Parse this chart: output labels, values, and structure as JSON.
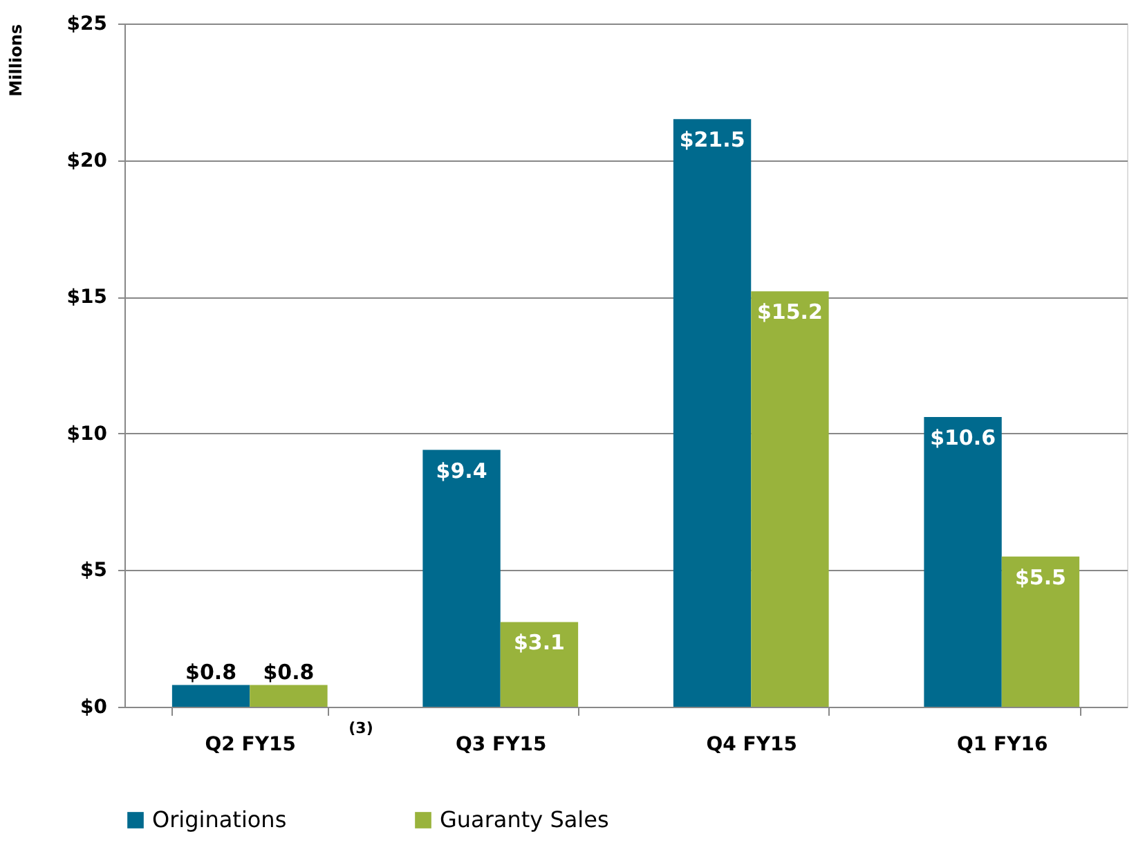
{
  "chart_data": {
    "type": "bar",
    "ylabel": "Millions",
    "categories": [
      "Q2 FY15",
      "Q3 FY15",
      "Q4 FY15",
      "Q1 FY16"
    ],
    "series": [
      {
        "name": "Originations",
        "color": "#006a8e",
        "values": [
          0.8,
          9.4,
          21.5,
          10.6
        ],
        "value_labels": [
          "$0.8",
          "$9.4",
          "$21.5",
          "$10.6"
        ]
      },
      {
        "name": "Guaranty Sales",
        "color": "#99b33c",
        "values": [
          0.8,
          3.1,
          15.2,
          5.5
        ],
        "value_labels": [
          "$0.8",
          "$3.1",
          "$15.2",
          "$5.5"
        ]
      }
    ],
    "ylim": [
      0,
      25
    ],
    "yticks": [
      {
        "value": 0,
        "label": "$0"
      },
      {
        "value": 5,
        "label": "$5"
      },
      {
        "value": 10,
        "label": "$10"
      },
      {
        "value": 15,
        "label": "$15"
      },
      {
        "value": 20,
        "label": "$20"
      },
      {
        "value": 25,
        "label": "$25"
      }
    ],
    "grid": "y",
    "legend": "bottom",
    "annotations": [
      "(3)"
    ]
  }
}
